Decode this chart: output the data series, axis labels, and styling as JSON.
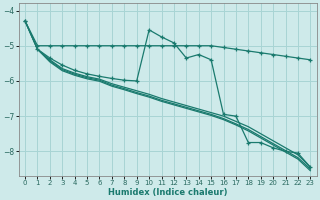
{
  "xlabel": "Humidex (Indice chaleur)",
  "bg_color": "#ceeaea",
  "grid_color": "#a8d4d4",
  "line_color": "#1a7a6e",
  "xlim": [
    -0.5,
    23.5
  ],
  "ylim": [
    -8.7,
    -3.8
  ],
  "yticks": [
    -8,
    -7,
    -6,
    -5,
    -4
  ],
  "xticks": [
    0,
    1,
    2,
    3,
    4,
    5,
    6,
    7,
    8,
    9,
    10,
    11,
    12,
    13,
    14,
    15,
    16,
    17,
    18,
    19,
    20,
    21,
    22,
    23
  ],
  "line1_x": [
    0,
    1,
    2,
    3,
    4,
    5,
    6,
    7,
    8,
    9,
    10,
    11,
    12,
    13,
    14,
    15,
    16,
    17,
    18,
    19,
    20,
    21,
    22,
    23
  ],
  "line1_y": [
    -4.3,
    -5.0,
    -5.0,
    -5.0,
    -5.0,
    -5.0,
    -5.0,
    -5.0,
    -5.0,
    -5.0,
    -5.0,
    -5.0,
    -5.0,
    -5.0,
    -5.0,
    -5.0,
    -5.05,
    -5.1,
    -5.15,
    -5.2,
    -5.25,
    -5.3,
    -5.35,
    -5.4
  ],
  "line2_x": [
    0,
    1,
    2,
    3,
    4,
    5,
    6,
    7,
    8,
    9,
    10,
    11,
    12,
    13,
    14,
    15,
    16,
    17,
    18,
    19,
    20,
    21,
    22,
    23
  ],
  "line2_y": [
    -4.3,
    -5.1,
    -5.35,
    -5.55,
    -5.7,
    -5.8,
    -5.87,
    -5.93,
    -5.98,
    -6.0,
    -4.55,
    -4.75,
    -4.92,
    -5.35,
    -5.25,
    -5.4,
    -6.95,
    -7.0,
    -7.75,
    -7.75,
    -7.9,
    -8.0,
    -8.05,
    -8.45
  ],
  "line3_x": [
    0,
    1,
    2,
    3,
    4,
    5,
    6,
    7,
    8,
    9,
    10,
    11,
    12,
    13,
    14,
    15,
    16,
    17,
    18,
    19,
    20,
    21,
    22,
    23
  ],
  "line3_y": [
    -4.3,
    -5.1,
    -5.4,
    -5.65,
    -5.78,
    -5.88,
    -5.95,
    -6.08,
    -6.18,
    -6.28,
    -6.38,
    -6.5,
    -6.6,
    -6.7,
    -6.8,
    -6.9,
    -7.0,
    -7.15,
    -7.3,
    -7.5,
    -7.7,
    -7.9,
    -8.1,
    -8.45
  ],
  "line4_x": [
    0,
    1,
    2,
    3,
    4,
    5,
    6,
    7,
    8,
    9,
    10,
    11,
    12,
    13,
    14,
    15,
    16,
    17,
    18,
    19,
    20,
    21,
    22,
    23
  ],
  "line4_y": [
    -4.3,
    -5.1,
    -5.43,
    -5.68,
    -5.81,
    -5.91,
    -5.98,
    -6.12,
    -6.22,
    -6.33,
    -6.43,
    -6.55,
    -6.65,
    -6.75,
    -6.85,
    -6.95,
    -7.07,
    -7.22,
    -7.38,
    -7.58,
    -7.78,
    -7.98,
    -8.18,
    -8.5
  ],
  "line5_x": [
    1,
    2,
    3,
    4,
    5,
    6,
    7,
    8,
    9,
    10,
    11,
    12,
    13,
    14,
    15,
    16,
    17,
    18,
    19,
    20,
    21,
    22,
    23
  ],
  "line5_y": [
    -5.1,
    -5.46,
    -5.71,
    -5.84,
    -5.94,
    -6.01,
    -6.15,
    -6.25,
    -6.36,
    -6.46,
    -6.58,
    -6.68,
    -6.78,
    -6.88,
    -6.98,
    -7.1,
    -7.25,
    -7.42,
    -7.62,
    -7.82,
    -8.02,
    -8.22,
    -8.55
  ]
}
